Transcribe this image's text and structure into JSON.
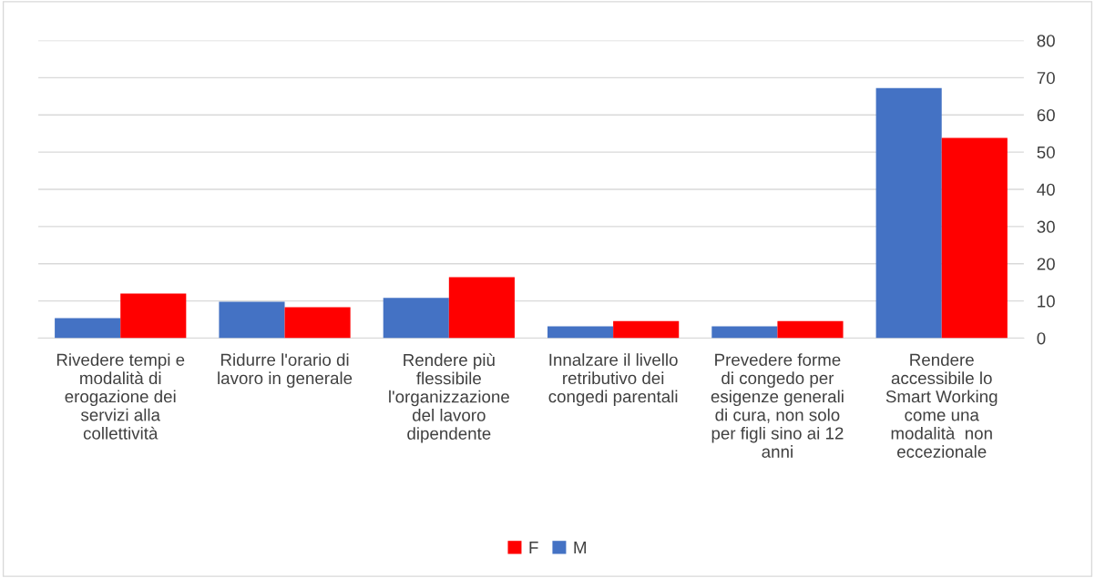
{
  "chart_data": {
    "type": "bar",
    "categories": [
      "Rivedere tempi e\nmodalità di\nerogazione dei\nservizi alla\ncollettività",
      "Ridurre l'orario di\nlavoro in generale",
      "Rendere più\nflessibile\nl'organizzazione\ndel lavoro\ndipendente",
      "Innalzare il livello\nretributivo dei\ncongedi parentali",
      "Prevedere forme\ndi congedo per\nesigenze generali\ndi cura, non solo\nper figli sino ai 12\nanni",
      "Rendere\naccessibile lo\nSmart Working\ncome una\nmodalità  non\neccezionale"
    ],
    "series": [
      {
        "name": "M",
        "color": "#4472c4",
        "values": [
          5.4,
          9.8,
          10.8,
          3.2,
          3.2,
          67.2
        ]
      },
      {
        "name": "F",
        "color": "#ff0000",
        "values": [
          12.0,
          8.3,
          16.4,
          4.6,
          4.6,
          53.8
        ]
      }
    ],
    "ylim": [
      0,
      80
    ],
    "yticks": [
      0,
      10,
      20,
      30,
      40,
      50,
      60,
      70,
      80
    ],
    "grid": "y",
    "legend": "bottom"
  }
}
